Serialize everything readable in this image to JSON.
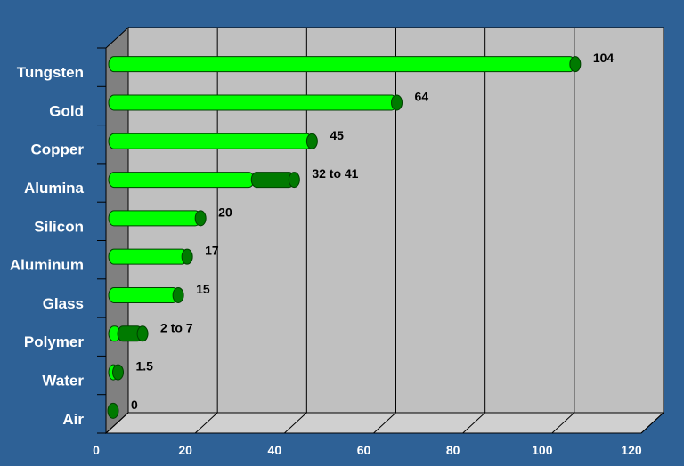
{
  "chart_data": {
    "type": "bar",
    "orientation": "horizontal",
    "style": "3d-cylinder",
    "categories": [
      "Tungsten",
      "Gold",
      "Copper",
      "Alumina",
      "Silicon",
      "Aluminum",
      "Glass",
      "Polymer",
      "Water",
      "Air"
    ],
    "values": [
      104,
      64,
      45,
      [
        32,
        41
      ],
      20,
      17,
      15,
      [
        2,
        7
      ],
      1.5,
      0
    ],
    "data_labels": [
      "104",
      "64",
      "45",
      "32 to 41",
      "20",
      "17",
      "15",
      "2 to 7",
      "1.5",
      "0"
    ],
    "xlim": [
      0,
      120
    ],
    "xticks": [
      0,
      20,
      40,
      60,
      80,
      100,
      120
    ],
    "xtick_labels": [
      "0",
      "20",
      "40",
      "60",
      "80",
      "100",
      "120"
    ],
    "grid": true,
    "legend": "none"
  },
  "colors": {
    "background": "#2e6196",
    "plot_back_wall": "#c0c0c0",
    "plot_side_wall": "#808080",
    "plot_floor": "#d0d0d0",
    "bar_fill": "#00ff00",
    "bar_range_fill": "#007a00",
    "bar_edge": "#004000",
    "label_text": "#ffffff",
    "value_text": "#000000"
  }
}
